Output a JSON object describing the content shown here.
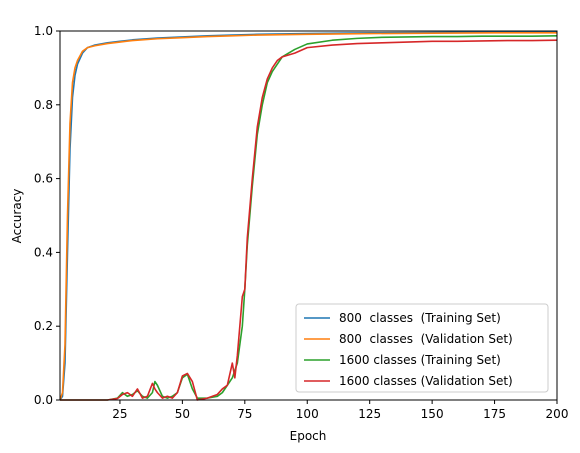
{
  "chart_data": {
    "type": "line",
    "title": "",
    "xlabel": "Epoch",
    "ylabel": "Accuracy",
    "xlim": [
      1,
      200
    ],
    "ylim": [
      0,
      1
    ],
    "xticks": [
      25,
      50,
      75,
      100,
      125,
      150,
      175,
      200
    ],
    "yticks": [
      0.0,
      0.2,
      0.4,
      0.6,
      0.8,
      1.0
    ],
    "xtick_labels": [
      "25",
      "50",
      "75",
      "100",
      "125",
      "150",
      "175",
      "200"
    ],
    "ytick_labels": [
      "0.0",
      "0.2",
      "0.4",
      "0.6",
      "0.8",
      "1.0"
    ],
    "grid": false,
    "legend_position": "bottom-right",
    "series": [
      {
        "name": "800  classes  (Training Set)",
        "color": "#1f77b4",
        "x": [
          1,
          2,
          3,
          4,
          5,
          6,
          7,
          8,
          10,
          12,
          15,
          20,
          25,
          30,
          40,
          50,
          60,
          70,
          80,
          100,
          125,
          150,
          175,
          200
        ],
        "y": [
          0.0,
          0.01,
          0.1,
          0.4,
          0.68,
          0.82,
          0.88,
          0.91,
          0.94,
          0.955,
          0.962,
          0.968,
          0.972,
          0.976,
          0.981,
          0.984,
          0.987,
          0.989,
          0.991,
          0.993,
          0.995,
          0.996,
          0.997,
          0.998
        ]
      },
      {
        "name": "800  classes  (Validation Set)",
        "color": "#ff7f0e",
        "x": [
          1,
          2,
          3,
          4,
          5,
          6,
          7,
          8,
          10,
          12,
          15,
          20,
          25,
          30,
          40,
          50,
          60,
          70,
          80,
          100,
          125,
          150,
          175,
          200
        ],
        "y": [
          0.0,
          0.02,
          0.15,
          0.5,
          0.75,
          0.86,
          0.9,
          0.92,
          0.945,
          0.955,
          0.96,
          0.966,
          0.97,
          0.974,
          0.979,
          0.982,
          0.985,
          0.987,
          0.989,
          0.991,
          0.993,
          0.994,
          0.995,
          0.995
        ]
      },
      {
        "name": "1600 classes (Training Set)",
        "color": "#2ca02c",
        "x": [
          1,
          20,
          24,
          26,
          28,
          30,
          32,
          34,
          36,
          38,
          39,
          40,
          42,
          44,
          46,
          48,
          50,
          52,
          54,
          56,
          60,
          64,
          66,
          68,
          70,
          72,
          74,
          75,
          76,
          78,
          80,
          82,
          84,
          86,
          88,
          90,
          95,
          100,
          110,
          120,
          130,
          140,
          150,
          160,
          170,
          180,
          190,
          200
        ],
        "y": [
          0.0,
          0.0,
          0.005,
          0.02,
          0.01,
          0.015,
          0.025,
          0.01,
          0.005,
          0.02,
          0.05,
          0.04,
          0.01,
          0.005,
          0.01,
          0.02,
          0.06,
          0.07,
          0.03,
          0.005,
          0.005,
          0.01,
          0.02,
          0.04,
          0.06,
          0.1,
          0.2,
          0.3,
          0.42,
          0.58,
          0.72,
          0.8,
          0.86,
          0.89,
          0.91,
          0.93,
          0.95,
          0.965,
          0.975,
          0.98,
          0.983,
          0.984,
          0.985,
          0.985,
          0.986,
          0.986,
          0.986,
          0.987
        ]
      },
      {
        "name": "1600 classes (Validation Set)",
        "color": "#d62728",
        "x": [
          1,
          20,
          24,
          26,
          28,
          30,
          32,
          34,
          36,
          38,
          39,
          40,
          42,
          44,
          46,
          48,
          50,
          52,
          54,
          56,
          60,
          64,
          66,
          68,
          70,
          71,
          72,
          74,
          75,
          76,
          78,
          80,
          82,
          84,
          86,
          88,
          90,
          95,
          100,
          110,
          120,
          130,
          140,
          150,
          160,
          170,
          180,
          190,
          200
        ],
        "y": [
          0.0,
          0.0,
          0.004,
          0.015,
          0.02,
          0.01,
          0.03,
          0.005,
          0.01,
          0.045,
          0.03,
          0.02,
          0.005,
          0.01,
          0.005,
          0.02,
          0.065,
          0.072,
          0.05,
          0.0,
          0.005,
          0.015,
          0.03,
          0.04,
          0.1,
          0.06,
          0.12,
          0.28,
          0.3,
          0.44,
          0.6,
          0.74,
          0.82,
          0.87,
          0.9,
          0.92,
          0.93,
          0.94,
          0.955,
          0.962,
          0.966,
          0.968,
          0.97,
          0.972,
          0.972,
          0.973,
          0.974,
          0.974,
          0.975
        ]
      }
    ]
  }
}
